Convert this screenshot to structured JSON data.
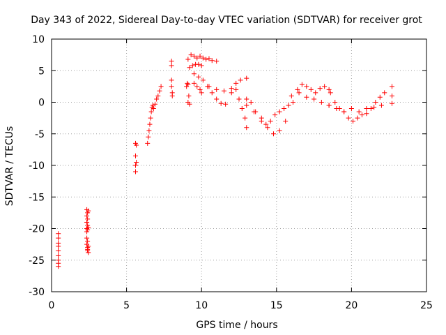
{
  "chart_data": {
    "type": "scatter",
    "title": "Day 343 of 2022, Sidereal Day-to-day VTEC variation (SDTVAR) for receiver grot",
    "xlabel": "GPS time / hours",
    "ylabel": "SDTVAR / TECUs",
    "xlim": [
      0,
      25
    ],
    "ylim": [
      -30,
      10
    ],
    "xticks": [
      0,
      5,
      10,
      15,
      20,
      25
    ],
    "yticks": [
      -30,
      -25,
      -20,
      -15,
      -10,
      -5,
      0,
      5,
      10
    ],
    "xtick_labels": [
      "0",
      "5",
      "10",
      "15",
      "20",
      "25"
    ],
    "ytick_labels": [
      "-30",
      "-25",
      "-20",
      "-15",
      "-10",
      "-5",
      "0",
      "5",
      "10"
    ],
    "grid": true,
    "marker": "plus",
    "color": "#ff0000",
    "series": [
      {
        "name": "SDTVAR",
        "x": [
          0.45,
          0.45,
          0.45,
          0.45,
          0.45,
          0.45,
          0.45,
          0.45,
          0.45,
          2.35,
          2.35,
          2.35,
          2.35,
          2.35,
          2.35,
          2.35,
          2.4,
          2.4,
          2.4,
          2.4,
          2.4,
          2.4,
          2.4,
          2.4,
          2.45,
          2.45,
          2.45,
          2.45,
          5.6,
          5.6,
          5.6,
          5.6,
          5.65,
          5.65,
          6.4,
          6.45,
          6.5,
          6.55,
          6.6,
          6.65,
          6.7,
          6.75,
          6.8,
          6.9,
          7.0,
          7.1,
          7.2,
          7.3,
          8.0,
          8.0,
          8.0,
          8.0,
          8.05,
          8.05,
          9.0,
          9.05,
          9.1,
          9.15,
          9.1,
          9.2,
          9.1,
          9.3,
          9.5,
          9.7,
          9.9,
          10.1,
          10.3,
          10.5,
          10.7,
          11.0,
          9.2,
          9.4,
          9.6,
          9.8,
          10.0,
          9.5,
          9.8,
          10.1,
          10.4,
          10.7,
          11.0,
          11.3,
          11.6,
          9.5,
          9.7,
          9.9,
          10.0,
          10.5,
          11.0,
          11.5,
          12.0,
          12.3,
          12.5,
          12.7,
          12.9,
          13.0,
          12.0,
          12.3,
          12.6,
          13.0,
          13.0,
          13.3,
          13.6,
          14.0,
          14.3,
          14.6,
          14.9,
          15.2,
          15.5,
          15.8,
          13.0,
          13.5,
          14.0,
          14.4,
          14.8,
          15.2,
          15.6,
          15.8,
          16.1,
          16.4,
          16.7,
          17.0,
          17.3,
          17.6,
          17.9,
          18.2,
          18.5,
          16.0,
          16.5,
          17.0,
          17.5,
          18.0,
          18.5,
          18.6,
          18.9,
          19.2,
          19.5,
          19.8,
          20.1,
          20.4,
          20.7,
          21.0,
          21.3,
          21.6,
          21.9,
          22.2,
          18.5,
          19.0,
          19.5,
          20.0,
          20.5,
          21.0,
          21.5,
          22.0,
          22.7,
          22.7,
          22.7
        ],
        "y": [
          -20.8,
          -21.5,
          -22.3,
          -22.8,
          -23.5,
          -24.3,
          -25.0,
          -25.5,
          -26.0,
          -17.0,
          -18.0,
          -19.0,
          -20.0,
          -20.5,
          -21.5,
          -22.5,
          -23.0,
          -23.3,
          -17.5,
          -18.5,
          -19.5,
          -20.2,
          -22.0,
          -23.5,
          -17.2,
          -19.8,
          -22.8,
          -23.8,
          -6.5,
          -8.5,
          -10.0,
          -11.0,
          -6.8,
          -9.5,
          -6.5,
          -5.5,
          -4.5,
          -3.5,
          -2.5,
          -1.5,
          -0.8,
          -0.5,
          -1.0,
          -0.3,
          0.5,
          1.0,
          1.8,
          2.5,
          6.5,
          5.8,
          3.5,
          2.5,
          1.5,
          1.0,
          2.5,
          3.0,
          2.8,
          1.0,
          0.0,
          -0.3,
          6.8,
          7.5,
          7.3,
          7.0,
          7.3,
          7.0,
          6.8,
          6.9,
          6.6,
          6.5,
          5.5,
          5.8,
          6.0,
          6.0,
          5.8,
          4.5,
          4.0,
          3.5,
          2.5,
          1.5,
          0.5,
          -0.2,
          -0.3,
          3.0,
          2.5,
          2.0,
          1.5,
          2.5,
          2.0,
          1.8,
          2.2,
          2.0,
          0.5,
          -1.0,
          -2.5,
          -4.0,
          1.5,
          3.0,
          3.5,
          3.8,
          0.5,
          0.0,
          -1.5,
          -3.0,
          -3.5,
          -3.0,
          -2.0,
          -1.5,
          -1.0,
          -0.5,
          -0.5,
          -1.5,
          -2.5,
          -4.0,
          -5.0,
          -4.5,
          -3.0,
          -0.5,
          0.0,
          2.0,
          2.8,
          2.5,
          2.0,
          1.5,
          2.2,
          2.5,
          2.0,
          1.0,
          1.5,
          0.8,
          0.5,
          0.0,
          -0.5,
          1.5,
          0.0,
          -1.0,
          -1.5,
          -2.5,
          -3.0,
          -2.5,
          -2.0,
          -1.8,
          -1.0,
          0.0,
          0.8,
          1.5,
          -0.5,
          -1.0,
          -1.5,
          -1.0,
          -1.5,
          -1.0,
          -0.8,
          -0.5,
          2.5,
          1.0,
          -0.2
        ]
      }
    ]
  }
}
